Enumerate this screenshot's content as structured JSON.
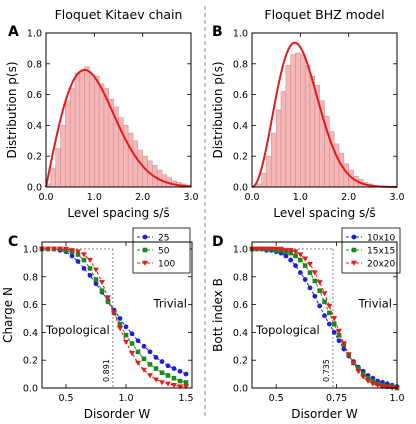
{
  "chart_data": [
    {
      "type": "bar",
      "panel_label": "A",
      "title": "Floquet Kitaev chain",
      "xlabel": "Level spacing s/s̄",
      "ylabel": "Distribution p(s)",
      "xlim": [
        0,
        3.0
      ],
      "ylim": [
        0,
        1.0
      ],
      "xticks": [
        "0.0",
        "1.0",
        "2.0",
        "3.0"
      ],
      "yticks": [
        "0.0",
        "0.2",
        "0.4",
        "0.6",
        "0.8",
        "1.0"
      ],
      "bin_width": 0.1,
      "bin_starts": [
        0.0,
        0.1,
        0.2,
        0.3,
        0.4,
        0.5,
        0.6,
        0.7,
        0.8,
        0.9,
        1.0,
        1.1,
        1.2,
        1.3,
        1.4,
        1.5,
        1.6,
        1.7,
        1.8,
        1.9,
        2.0,
        2.1,
        2.2,
        2.3,
        2.4,
        2.5,
        2.6,
        2.7,
        2.8,
        2.9
      ],
      "values": [
        0.02,
        0.12,
        0.25,
        0.4,
        0.56,
        0.64,
        0.74,
        0.75,
        0.78,
        0.73,
        0.72,
        0.67,
        0.64,
        0.57,
        0.52,
        0.45,
        0.4,
        0.35,
        0.3,
        0.24,
        0.2,
        0.17,
        0.14,
        0.11,
        0.08,
        0.06,
        0.04,
        0.03,
        0.02,
        0.01
      ],
      "curve": "GOE Wigner surmise (red line)",
      "colors": {
        "bars": "#f4b6b6",
        "bar_edge": "#cc8a8a",
        "curve": "#e41a1c"
      }
    },
    {
      "type": "bar",
      "panel_label": "B",
      "title": "Floquet BHZ model",
      "xlabel": "Level spacing s/s̄",
      "ylabel": "Distribution p(s)",
      "xlim": [
        0,
        3.0
      ],
      "ylim": [
        0,
        1.0
      ],
      "xticks": [
        "0.0",
        "1.0",
        "2.0",
        "3.0"
      ],
      "yticks": [
        "0.0",
        "0.2",
        "0.4",
        "0.6",
        "0.8",
        "1.0"
      ],
      "bin_width": 0.1,
      "bin_starts": [
        0.0,
        0.1,
        0.2,
        0.3,
        0.4,
        0.5,
        0.6,
        0.7,
        0.8,
        0.9,
        1.0,
        1.1,
        1.2,
        1.3,
        1.4,
        1.5,
        1.6,
        1.7,
        1.8,
        1.9,
        2.0,
        2.1,
        2.2,
        2.3,
        2.4,
        2.5,
        2.6,
        2.7,
        2.8,
        2.9
      ],
      "values": [
        0.0,
        0.02,
        0.09,
        0.2,
        0.35,
        0.5,
        0.62,
        0.79,
        0.86,
        0.87,
        0.86,
        0.79,
        0.72,
        0.66,
        0.56,
        0.46,
        0.36,
        0.28,
        0.22,
        0.15,
        0.11,
        0.07,
        0.05,
        0.03,
        0.02,
        0.01,
        0.0,
        0.0,
        0.0,
        0.0
      ],
      "curve": "GUE Wigner surmise (red line)",
      "colors": {
        "bars": "#f4b6b6",
        "bar_edge": "#cc8a8a",
        "curve": "#e41a1c"
      }
    },
    {
      "type": "line",
      "panel_label": "C",
      "xlabel": "Disorder W",
      "ylabel": "Charge N",
      "xlim": [
        0.3,
        1.55
      ],
      "ylim": [
        0,
        1.05
      ],
      "xticks": [
        "0.5",
        "1.0",
        "1.5"
      ],
      "xtick_values": [
        0.5,
        1.0,
        1.5
      ],
      "yticks": [
        "0.0",
        "0.2",
        "0.4",
        "0.6",
        "0.8",
        "1.0"
      ],
      "legend_position": "top-right",
      "annotations": {
        "left_region": "Topological",
        "right_region": "Trivial",
        "critical": "0.891"
      },
      "critical_x": 0.891,
      "x": [
        0.3,
        0.35,
        0.4,
        0.45,
        0.5,
        0.55,
        0.6,
        0.65,
        0.7,
        0.75,
        0.8,
        0.85,
        0.9,
        0.95,
        1.0,
        1.05,
        1.1,
        1.15,
        1.2,
        1.25,
        1.3,
        1.35,
        1.4,
        1.45,
        1.5
      ],
      "series": [
        {
          "name": "25",
          "color": "#1f1fd6",
          "marker": "circle",
          "values": [
            1.0,
            1.0,
            1.0,
            0.99,
            0.98,
            0.95,
            0.91,
            0.86,
            0.81,
            0.75,
            0.69,
            0.63,
            0.56,
            0.5,
            0.44,
            0.39,
            0.34,
            0.3,
            0.26,
            0.22,
            0.19,
            0.16,
            0.14,
            0.12,
            0.1
          ]
        },
        {
          "name": "50",
          "color": "#1a8a1a",
          "marker": "square",
          "values": [
            1.0,
            1.0,
            1.0,
            1.0,
            0.99,
            0.98,
            0.96,
            0.92,
            0.86,
            0.78,
            0.7,
            0.62,
            0.54,
            0.46,
            0.38,
            0.32,
            0.26,
            0.21,
            0.17,
            0.14,
            0.11,
            0.09,
            0.07,
            0.05,
            0.04
          ]
        },
        {
          "name": "100",
          "color": "#e41a1c",
          "marker": "triangle-down",
          "values": [
            1.0,
            1.0,
            1.0,
            1.0,
            1.0,
            0.99,
            0.98,
            0.96,
            0.92,
            0.85,
            0.76,
            0.65,
            0.54,
            0.43,
            0.33,
            0.25,
            0.18,
            0.13,
            0.09,
            0.06,
            0.04,
            0.03,
            0.02,
            0.01,
            0.01
          ]
        }
      ]
    },
    {
      "type": "line",
      "panel_label": "D",
      "xlabel": "Disorder W",
      "ylabel": "Bott index B",
      "xlim": [
        0.4,
        1.0
      ],
      "ylim": [
        0,
        1.05
      ],
      "xticks": [
        "0.5",
        "0.75",
        "1.0"
      ],
      "xtick_values": [
        0.5,
        0.75,
        1.0
      ],
      "yticks": [
        "0.0",
        "0.2",
        "0.4",
        "0.6",
        "0.8",
        "1.0"
      ],
      "legend_position": "top-right",
      "annotations": {
        "left_region": "Topological",
        "right_region": "Trivial",
        "critical": "0.735"
      },
      "critical_x": 0.735,
      "x": [
        0.4,
        0.42,
        0.44,
        0.46,
        0.48,
        0.5,
        0.52,
        0.54,
        0.56,
        0.58,
        0.6,
        0.62,
        0.64,
        0.66,
        0.68,
        0.7,
        0.72,
        0.74,
        0.76,
        0.78,
        0.8,
        0.82,
        0.84,
        0.86,
        0.88,
        0.9,
        0.92,
        0.94,
        0.96,
        0.98,
        1.0
      ],
      "series": [
        {
          "name": "10x10",
          "color": "#1f1fd6",
          "marker": "circle",
          "values": [
            1.0,
            1.0,
            1.0,
            0.99,
            0.99,
            0.98,
            0.97,
            0.95,
            0.92,
            0.88,
            0.83,
            0.78,
            0.72,
            0.66,
            0.59,
            0.52,
            0.46,
            0.4,
            0.34,
            0.28,
            0.23,
            0.19,
            0.15,
            0.12,
            0.09,
            0.07,
            0.05,
            0.04,
            0.03,
            0.02,
            0.01
          ]
        },
        {
          "name": "15x15",
          "color": "#1a8a1a",
          "marker": "square",
          "values": [
            1.0,
            1.0,
            1.0,
            1.0,
            1.0,
            0.99,
            0.99,
            0.98,
            0.97,
            0.95,
            0.92,
            0.88,
            0.83,
            0.77,
            0.7,
            0.62,
            0.54,
            0.46,
            0.38,
            0.31,
            0.24,
            0.18,
            0.14,
            0.1,
            0.07,
            0.05,
            0.03,
            0.02,
            0.01,
            0.01,
            0.0
          ]
        },
        {
          "name": "20x20",
          "color": "#e41a1c",
          "marker": "triangle-down",
          "values": [
            1.0,
            1.0,
            1.0,
            1.0,
            1.0,
            1.0,
            1.0,
            0.99,
            0.99,
            0.98,
            0.96,
            0.93,
            0.89,
            0.83,
            0.76,
            0.68,
            0.59,
            0.5,
            0.41,
            0.32,
            0.24,
            0.18,
            0.12,
            0.08,
            0.05,
            0.03,
            0.02,
            0.01,
            0.01,
            0.0,
            0.0
          ]
        }
      ]
    }
  ]
}
